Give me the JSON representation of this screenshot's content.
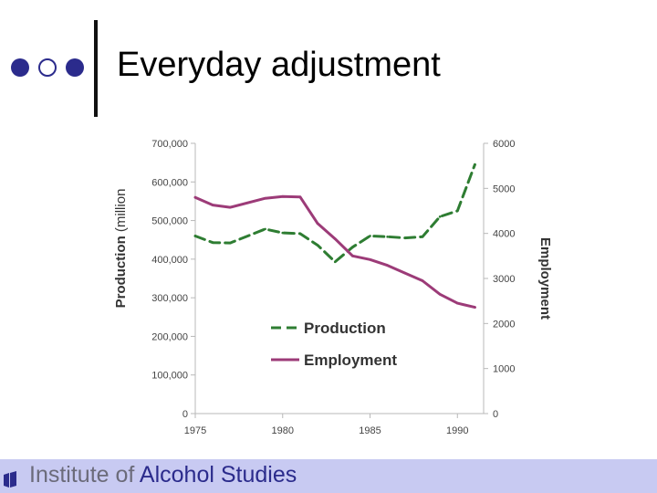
{
  "slide": {
    "title": "Everyday adjustment"
  },
  "footer": {
    "org_part1": "Institute of ",
    "org_part2": "Alcohol Studies"
  },
  "colors": {
    "production": "#2e7d32",
    "employment": "#9c3b78",
    "accent": "#2b2b8c",
    "footer_bg": "#c8caf2"
  },
  "chart_data": {
    "type": "line",
    "x": [
      1975,
      1976,
      1977,
      1979,
      1980,
      1981,
      1982,
      1983,
      1984,
      1985,
      1986,
      1987,
      1988,
      1989,
      1990,
      1991
    ],
    "xlim": [
      1975,
      1991.5
    ],
    "x_ticks": [
      "1975",
      "1980",
      "1985",
      "1990"
    ],
    "ylabel": "Production (million",
    "y2label": "Employment",
    "ylim": [
      0,
      700000
    ],
    "y_ticks": [
      "0",
      "100,000",
      "200,000",
      "300,000",
      "400,000",
      "500,000",
      "600,000",
      "700,000"
    ],
    "y2lim": [
      0,
      6000
    ],
    "y2_ticks": [
      "0",
      "1000",
      "2000",
      "3000",
      "4000",
      "5000",
      "6000"
    ],
    "grid": false,
    "legend_position": "center-right",
    "series": [
      {
        "name": "Production",
        "axis": "left",
        "style": "dashed",
        "values": [
          460000,
          443000,
          442000,
          478000,
          468000,
          466000,
          436000,
          393000,
          431000,
          460000,
          458000,
          455000,
          458000,
          510000,
          525000,
          645000
        ]
      },
      {
        "name": "Employment",
        "axis": "right",
        "style": "solid",
        "values": [
          4800,
          4630,
          4580,
          4780,
          4820,
          4810,
          4220,
          3880,
          3500,
          3420,
          3290,
          3120,
          2950,
          2650,
          2450,
          2360
        ]
      }
    ]
  }
}
